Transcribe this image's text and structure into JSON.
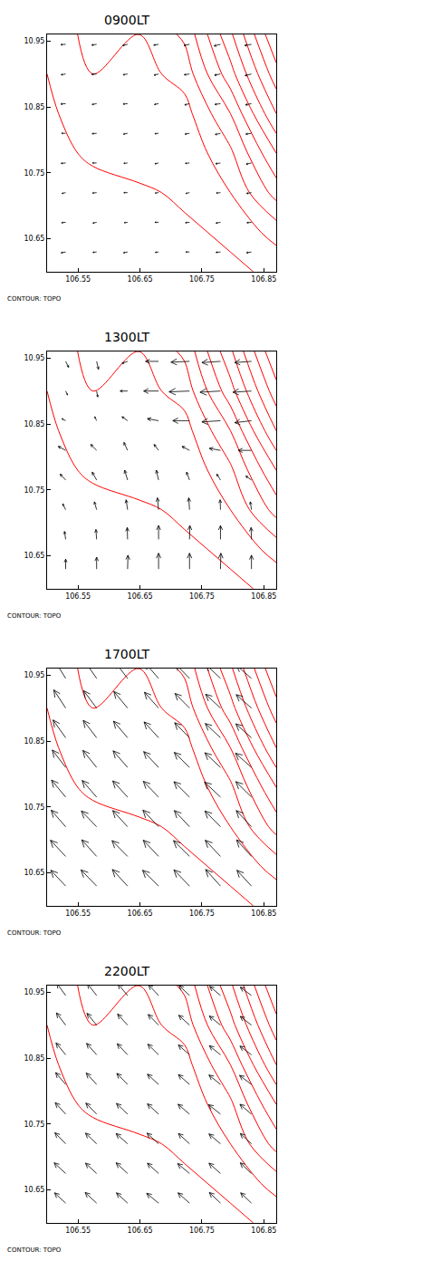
{
  "chart_data": [
    {
      "type": "vector",
      "title": "0900LT",
      "caption": "CONTOUR: TOPO",
      "color": "#000000",
      "xlim": [
        106.5,
        106.87
      ],
      "ylim": [
        10.6,
        10.96
      ],
      "xticks": [
        106.55,
        106.65,
        106.75,
        106.85
      ],
      "yticks": [
        10.65,
        10.75,
        10.85,
        10.95
      ],
      "x": [
        106.53,
        106.58,
        106.63,
        106.68,
        106.73,
        106.78,
        106.83
      ],
      "y": [
        10.63,
        10.675,
        10.72,
        10.765,
        10.81,
        10.855,
        10.9,
        10.945
      ],
      "u": [
        [
          -1.2,
          -1.0,
          -1.1,
          -0.9,
          -1.0,
          -1.2,
          -1.3
        ],
        [
          -1.1,
          -1.0,
          -0.9,
          -1.0,
          -1.1,
          -1.2,
          -1.2
        ],
        [
          -1.0,
          -1.1,
          -1.0,
          -0.9,
          -1.0,
          -1.1,
          -1.3
        ],
        [
          -1.2,
          -1.1,
          -1.0,
          -1.0,
          -1.1,
          -1.3,
          -1.4
        ],
        [
          -1.1,
          -1.2,
          -1.1,
          -1.0,
          -1.2,
          -1.4,
          -1.5
        ],
        [
          -1.3,
          -1.2,
          -1.2,
          -1.1,
          -1.3,
          -1.5,
          -1.6
        ],
        [
          -1.2,
          -1.3,
          -1.2,
          -1.2,
          -1.4,
          -1.6,
          -1.7
        ],
        [
          -1.3,
          -1.3,
          -1.3,
          -1.3,
          -1.5,
          -1.7,
          -1.8
        ]
      ],
      "v": [
        [
          -0.2,
          -0.1,
          -0.2,
          -0.1,
          0.0,
          -0.1,
          -0.2
        ],
        [
          -0.1,
          -0.2,
          -0.1,
          0.0,
          -0.1,
          -0.2,
          -0.1
        ],
        [
          -0.2,
          -0.1,
          0.0,
          -0.1,
          -0.2,
          -0.1,
          -0.2
        ],
        [
          -0.1,
          0.0,
          -0.1,
          -0.2,
          -0.1,
          -0.2,
          -0.3
        ],
        [
          0.0,
          -0.1,
          -0.2,
          -0.1,
          -0.2,
          -0.3,
          -0.2
        ],
        [
          -0.1,
          -0.2,
          -0.1,
          -0.2,
          -0.3,
          -0.2,
          -0.3
        ],
        [
          -0.2,
          -0.1,
          -0.2,
          -0.3,
          -0.2,
          -0.3,
          -0.4
        ],
        [
          -0.1,
          -0.2,
          -0.3,
          -0.2,
          -0.3,
          -0.4,
          -0.3
        ]
      ],
      "topography": {
        "color": "#ff0000",
        "levels": {
          "start": 5,
          "end": 55,
          "size": 5
        },
        "x": [
          106.5,
          106.574,
          106.648,
          106.722,
          106.796,
          106.87
        ],
        "y": [
          10.6,
          10.66,
          10.72,
          10.78,
          10.84,
          10.9,
          10.96
        ],
        "z": [
          [
            1,
            2,
            2,
            3,
            4,
            6
          ],
          [
            2,
            2,
            3,
            4,
            6,
            12
          ],
          [
            2,
            3,
            4,
            6,
            10,
            22
          ],
          [
            3,
            6,
            8,
            6,
            14,
            30
          ],
          [
            4,
            8,
            6,
            8,
            20,
            40
          ],
          [
            5,
            10,
            8,
            12,
            28,
            48
          ],
          [
            6,
            12,
            10,
            16,
            34,
            55
          ]
        ]
      }
    },
    {
      "type": "vector",
      "title": "1300LT",
      "caption": "CONTOUR: TOPO",
      "color": "#000000",
      "xlim": [
        106.5,
        106.87
      ],
      "ylim": [
        10.6,
        10.96
      ],
      "xticks": [
        106.55,
        106.65,
        106.75,
        106.85
      ],
      "yticks": [
        10.65,
        10.75,
        10.85,
        10.95
      ],
      "x": [
        106.53,
        106.58,
        106.63,
        106.68,
        106.73,
        106.78,
        106.83
      ],
      "y": [
        10.63,
        10.675,
        10.72,
        10.765,
        10.81,
        10.855,
        10.9,
        10.945
      ],
      "u": [
        [
          0.0,
          0.0,
          0.1,
          0.0,
          0.0,
          0.1,
          0.0
        ],
        [
          -0.3,
          -0.2,
          -0.1,
          0.0,
          0.1,
          0.0,
          -0.1
        ],
        [
          -0.8,
          -0.6,
          -0.4,
          -0.3,
          -0.2,
          -0.1,
          -0.3
        ],
        [
          -1.5,
          -1.2,
          -0.8,
          -0.6,
          -0.8,
          -1.0,
          -1.5
        ],
        [
          -2.0,
          -1.6,
          -1.0,
          -1.2,
          -2.0,
          -3.0,
          -3.5
        ],
        [
          -1.0,
          -0.5,
          -1.5,
          -3.0,
          -4.5,
          -5.0,
          -4.5
        ],
        [
          0.5,
          0.3,
          -2.0,
          -4.0,
          -5.5,
          -5.5,
          -5.0
        ],
        [
          0.8,
          0.5,
          -1.5,
          -3.5,
          -5.0,
          -5.0,
          -4.5
        ]
      ],
      "v": [
        [
          2.5,
          3.0,
          3.5,
          4.0,
          4.0,
          4.0,
          3.5
        ],
        [
          2.0,
          2.5,
          3.0,
          3.5,
          3.5,
          3.5,
          3.0
        ],
        [
          1.5,
          2.0,
          2.5,
          3.0,
          3.0,
          2.5,
          2.0
        ],
        [
          1.5,
          2.0,
          2.5,
          2.5,
          2.0,
          1.5,
          1.0
        ],
        [
          1.0,
          1.5,
          2.0,
          1.5,
          1.0,
          0.5,
          0.0
        ],
        [
          0.5,
          1.0,
          1.0,
          0.5,
          0.0,
          -0.3,
          -0.5
        ],
        [
          -1.0,
          -1.5,
          0.0,
          0.0,
          -0.2,
          -0.3,
          -0.3
        ],
        [
          -1.5,
          -2.0,
          -0.5,
          0.0,
          -0.2,
          -0.3,
          -0.3
        ]
      ],
      "topography": {
        "color": "#ff0000",
        "levels": {
          "start": 5,
          "end": 55,
          "size": 5
        },
        "x": [
          106.5,
          106.574,
          106.648,
          106.722,
          106.796,
          106.87
        ],
        "y": [
          10.6,
          10.66,
          10.72,
          10.78,
          10.84,
          10.9,
          10.96
        ],
        "z": [
          [
            1,
            2,
            2,
            3,
            4,
            6
          ],
          [
            2,
            2,
            3,
            4,
            6,
            12
          ],
          [
            2,
            3,
            4,
            6,
            10,
            22
          ],
          [
            3,
            6,
            8,
            6,
            14,
            30
          ],
          [
            4,
            8,
            6,
            8,
            20,
            40
          ],
          [
            5,
            10,
            8,
            12,
            28,
            48
          ],
          [
            6,
            12,
            10,
            16,
            34,
            55
          ]
        ]
      }
    },
    {
      "type": "vector",
      "title": "1700LT",
      "caption": "CONTOUR: TOPO",
      "color": "#000000",
      "xlim": [
        106.5,
        106.87
      ],
      "ylim": [
        10.6,
        10.96
      ],
      "xticks": [
        106.55,
        106.65,
        106.75,
        106.85
      ],
      "yticks": [
        10.65,
        10.75,
        10.85,
        10.95
      ],
      "x": [
        106.53,
        106.58,
        106.63,
        106.68,
        106.73,
        106.78,
        106.83
      ],
      "y": [
        10.63,
        10.675,
        10.72,
        10.765,
        10.81,
        10.855,
        10.9,
        10.945
      ],
      "u": [
        [
          -4.0,
          -4.2,
          -4.1,
          -4.3,
          -4.2,
          -4.0,
          -3.9
        ],
        [
          -4.1,
          -4.0,
          -4.2,
          -4.1,
          -4.3,
          -4.1,
          -4.0
        ],
        [
          -3.9,
          -4.1,
          -4.0,
          -4.2,
          -4.1,
          -4.2,
          -4.1
        ],
        [
          -3.8,
          -3.9,
          -4.0,
          -4.1,
          -4.2,
          -4.3,
          -4.2
        ],
        [
          -3.6,
          -3.7,
          -3.9,
          -4.0,
          -4.1,
          -4.2,
          -4.3
        ],
        [
          -3.4,
          -3.6,
          -3.8,
          -3.9,
          -4.0,
          -4.1,
          -4.2
        ],
        [
          -3.2,
          -3.5,
          -3.7,
          -3.8,
          -3.9,
          -4.0,
          -4.1
        ],
        [
          -3.0,
          -3.3,
          -3.5,
          -3.7,
          -3.8,
          -3.9,
          -4.0
        ]
      ],
      "v": [
        [
          4.0,
          4.1,
          4.2,
          4.0,
          4.1,
          4.2,
          4.0
        ],
        [
          4.1,
          4.2,
          4.0,
          4.1,
          4.0,
          4.1,
          4.2
        ],
        [
          4.2,
          4.0,
          4.1,
          4.2,
          4.1,
          4.0,
          4.1
        ],
        [
          4.3,
          4.2,
          4.1,
          4.0,
          3.9,
          3.8,
          3.9
        ],
        [
          4.4,
          4.3,
          4.2,
          4.0,
          3.8,
          3.7,
          3.6
        ],
        [
          4.5,
          4.4,
          4.2,
          4.0,
          3.8,
          3.6,
          3.5
        ],
        [
          4.6,
          4.4,
          4.2,
          4.0,
          3.7,
          3.5,
          3.4
        ],
        [
          4.6,
          4.5,
          4.3,
          4.0,
          3.7,
          3.5,
          3.3
        ]
      ],
      "topography": {
        "color": "#ff0000",
        "levels": {
          "start": 5,
          "end": 55,
          "size": 5
        },
        "x": [
          106.5,
          106.574,
          106.648,
          106.722,
          106.796,
          106.87
        ],
        "y": [
          10.6,
          10.66,
          10.72,
          10.78,
          10.84,
          10.9,
          10.96
        ],
        "z": [
          [
            1,
            2,
            2,
            3,
            4,
            6
          ],
          [
            2,
            2,
            3,
            4,
            6,
            12
          ],
          [
            2,
            3,
            4,
            6,
            10,
            22
          ],
          [
            3,
            6,
            8,
            6,
            14,
            30
          ],
          [
            4,
            8,
            6,
            8,
            20,
            40
          ],
          [
            5,
            10,
            8,
            12,
            28,
            48
          ],
          [
            6,
            12,
            10,
            16,
            34,
            55
          ]
        ]
      }
    },
    {
      "type": "vector",
      "title": "2200LT",
      "caption": "CONTOUR: TOPO",
      "color": "#000000",
      "xlim": [
        106.5,
        106.87
      ],
      "ylim": [
        10.6,
        10.96
      ],
      "xticks": [
        106.55,
        106.65,
        106.75,
        106.85
      ],
      "yticks": [
        10.65,
        10.75,
        10.85,
        10.95
      ],
      "x": [
        106.53,
        106.58,
        106.63,
        106.68,
        106.73,
        106.78,
        106.83
      ],
      "y": [
        10.63,
        10.675,
        10.72,
        10.765,
        10.81,
        10.855,
        10.9,
        10.945
      ],
      "u": [
        [
          -3.0,
          -3.1,
          -3.0,
          -3.2,
          -3.1,
          -3.0,
          -2.9
        ],
        [
          -3.1,
          -3.0,
          -3.1,
          -3.0,
          -3.2,
          -3.1,
          -3.0
        ],
        [
          -2.9,
          -3.0,
          -3.1,
          -3.1,
          -3.0,
          -3.1,
          -3.0
        ],
        [
          -2.8,
          -2.9,
          -3.0,
          -3.0,
          -3.1,
          -3.2,
          -3.1
        ],
        [
          -2.7,
          -2.8,
          -2.9,
          -3.0,
          -3.0,
          -3.1,
          -3.2
        ],
        [
          -2.6,
          -2.7,
          -2.8,
          -2.9,
          -3.0,
          -3.0,
          -3.1
        ],
        [
          -2.5,
          -2.6,
          -2.7,
          -2.8,
          -2.9,
          -3.0,
          -3.0
        ],
        [
          -2.4,
          -2.5,
          -2.6,
          -2.7,
          -2.8,
          -2.9,
          -3.0
        ]
      ],
      "v": [
        [
          2.6,
          2.7,
          2.6,
          2.5,
          2.6,
          2.7,
          2.6
        ],
        [
          2.7,
          2.6,
          2.7,
          2.6,
          2.5,
          2.6,
          2.7
        ],
        [
          2.8,
          2.7,
          2.6,
          2.7,
          2.6,
          2.5,
          2.6
        ],
        [
          2.9,
          2.8,
          2.7,
          2.6,
          2.5,
          2.4,
          2.5
        ],
        [
          3.0,
          2.9,
          2.8,
          2.6,
          2.5,
          2.4,
          2.3
        ],
        [
          3.0,
          2.9,
          2.8,
          2.7,
          2.5,
          2.3,
          2.2
        ],
        [
          3.1,
          3.0,
          2.8,
          2.7,
          2.5,
          2.3,
          2.2
        ],
        [
          3.1,
          3.0,
          2.9,
          2.7,
          2.5,
          2.3,
          2.1
        ]
      ],
      "topography": {
        "color": "#ff0000",
        "levels": {
          "start": 5,
          "end": 55,
          "size": 5
        },
        "x": [
          106.5,
          106.574,
          106.648,
          106.722,
          106.796,
          106.87
        ],
        "y": [
          10.6,
          10.66,
          10.72,
          10.78,
          10.84,
          10.9,
          10.96
        ],
        "z": [
          [
            1,
            2,
            2,
            3,
            4,
            6
          ],
          [
            2,
            2,
            3,
            4,
            6,
            12
          ],
          [
            2,
            3,
            4,
            6,
            10,
            22
          ],
          [
            3,
            6,
            8,
            6,
            14,
            30
          ],
          [
            4,
            8,
            6,
            8,
            20,
            40
          ],
          [
            5,
            10,
            8,
            12,
            28,
            48
          ],
          [
            6,
            12,
            10,
            16,
            34,
            55
          ]
        ]
      }
    }
  ]
}
